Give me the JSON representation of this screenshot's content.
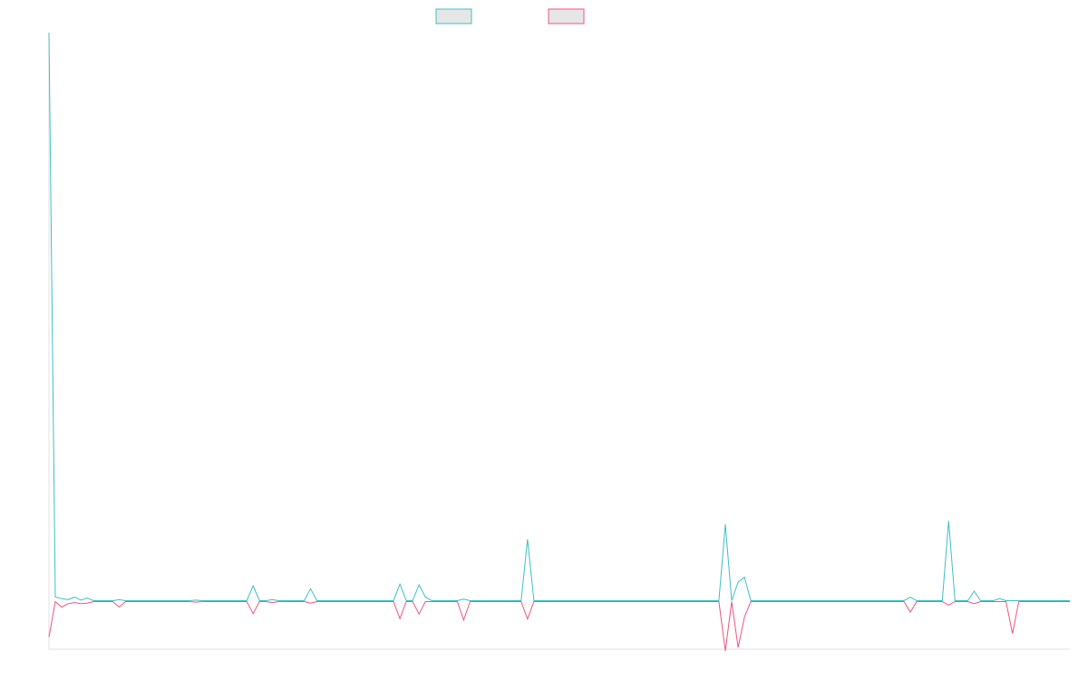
{
  "colors": {
    "series_a": "#3dbfc7",
    "series_b": "#f0557f",
    "axis": "#e0e0e0",
    "legend_fill": "#e6e6e6"
  },
  "legend": [
    {
      "key": "series_a",
      "label": ""
    },
    {
      "key": "series_b",
      "label": ""
    }
  ],
  "chart_data": {
    "type": "line",
    "title": "",
    "xlabel": "",
    "ylabel": "",
    "grid": false,
    "legend_position": "top-center",
    "ylim": [
      -10,
      114
    ],
    "x": [
      0,
      1,
      2,
      3,
      4,
      5,
      6,
      7,
      8,
      9,
      10,
      11,
      12,
      13,
      14,
      15,
      16,
      17,
      18,
      19,
      20,
      21,
      22,
      23,
      24,
      25,
      26,
      27,
      28,
      29,
      30,
      31,
      32,
      33,
      34,
      35,
      36,
      37,
      38,
      39,
      40,
      41,
      42,
      43,
      44,
      45,
      46,
      47,
      48,
      49,
      50,
      51,
      52,
      53,
      54,
      55,
      56,
      57,
      58,
      59,
      60,
      61,
      62,
      63,
      64,
      65,
      66,
      67,
      68,
      69,
      70,
      71,
      72,
      73,
      74,
      75,
      76,
      77,
      78,
      79,
      80,
      81,
      82,
      83,
      84,
      85,
      86,
      87,
      88,
      89,
      90,
      91,
      92,
      93,
      94,
      95,
      96,
      97,
      98,
      99,
      100,
      101,
      102,
      103,
      104,
      105,
      106,
      107,
      108,
      109,
      110,
      111,
      112,
      113,
      114,
      115,
      116,
      117,
      118,
      119,
      120,
      121,
      122,
      123,
      124,
      125,
      126,
      127,
      128,
      129,
      130,
      131,
      132,
      133,
      134,
      135,
      136,
      137,
      138,
      139,
      140,
      141,
      142,
      143,
      144,
      145,
      146,
      147,
      148,
      149,
      150,
      151,
      152,
      153,
      154,
      155,
      156,
      157,
      158,
      159,
      160
    ],
    "series": [
      {
        "key": "series_a",
        "values": [
          114,
          0.8,
          0.5,
          0.3,
          0.8,
          0.2,
          0.6,
          0.1,
          0.1,
          0.1,
          0.1,
          0.3,
          0.1,
          0.1,
          0.1,
          0.1,
          0.1,
          0.1,
          0.1,
          0.1,
          0.1,
          0.1,
          0.1,
          0.2,
          0.1,
          0.1,
          0.1,
          0.1,
          0.1,
          0.1,
          0.1,
          0.1,
          3.1,
          0.1,
          0.1,
          0.3,
          0.1,
          0.1,
          0.1,
          0.1,
          0.1,
          2.5,
          0.1,
          0.1,
          0.1,
          0.1,
          0.1,
          0.1,
          0.1,
          0.1,
          0.1,
          0.1,
          0.1,
          0.1,
          0.1,
          3.4,
          0.1,
          0.1,
          3.3,
          0.8,
          0.1,
          0.1,
          0.1,
          0.1,
          0.1,
          0.4,
          0.1,
          0.1,
          0.1,
          0.1,
          0.1,
          0.1,
          0.1,
          0.1,
          0.1,
          12.4,
          0.1,
          0.1,
          0.1,
          0.1,
          0.1,
          0.1,
          0.1,
          0.1,
          0.1,
          0.1,
          0.1,
          0.1,
          0.1,
          0.1,
          0.1,
          0.1,
          0.1,
          0.1,
          0.1,
          0.1,
          0.1,
          0.1,
          0.1,
          0.1,
          0.1,
          0.1,
          0.1,
          0.1,
          0.1,
          0.1,
          15.4,
          0.1,
          3.8,
          4.8,
          0.1,
          0.1,
          0.1,
          0.1,
          0.1,
          0.1,
          0.1,
          0.1,
          0.1,
          0.1,
          0.1,
          0.1,
          0.1,
          0.1,
          0.1,
          0.1,
          0.1,
          0.1,
          0.1,
          0.1,
          0.1,
          0.1,
          0.1,
          0.1,
          0.1,
          0.8,
          0.1,
          0.1,
          0.1,
          0.1,
          0.1,
          16.1,
          0.1,
          0.1,
          0.1,
          2.0,
          0.1,
          0.1,
          0.1,
          0.5,
          0.1,
          0.1,
          0.1,
          0.1,
          0.1,
          0.1,
          0.1,
          0.1,
          0.1,
          0.1,
          0.1
        ]
      },
      {
        "key": "series_b",
        "values": [
          -7.2,
          -0.1,
          -1.2,
          -0.5,
          -0.3,
          -0.5,
          -0.4,
          -0.1,
          -0.1,
          -0.1,
          -0.1,
          -1.2,
          -0.1,
          -0.1,
          -0.1,
          -0.1,
          -0.1,
          -0.1,
          -0.1,
          -0.1,
          -0.1,
          -0.1,
          -0.1,
          -0.2,
          -0.1,
          -0.1,
          -0.1,
          -0.1,
          -0.1,
          -0.1,
          -0.1,
          -0.1,
          -2.5,
          -0.1,
          -0.1,
          -0.3,
          -0.1,
          -0.1,
          -0.1,
          -0.1,
          -0.1,
          -0.4,
          -0.1,
          -0.1,
          -0.1,
          -0.1,
          -0.1,
          -0.1,
          -0.1,
          -0.1,
          -0.1,
          -0.1,
          -0.1,
          -0.1,
          -0.1,
          -3.5,
          -0.1,
          -0.1,
          -2.6,
          -0.1,
          -0.1,
          -0.1,
          -0.1,
          -0.1,
          -0.1,
          -3.8,
          -0.1,
          -0.1,
          -0.1,
          -0.1,
          -0.1,
          -0.1,
          -0.1,
          -0.1,
          -0.1,
          -3.6,
          -0.1,
          -0.1,
          -0.1,
          -0.1,
          -0.1,
          -0.1,
          -0.1,
          -0.1,
          -0.1,
          -0.1,
          -0.1,
          -0.1,
          -0.1,
          -0.1,
          -0.1,
          -0.1,
          -0.1,
          -0.1,
          -0.1,
          -0.1,
          -0.1,
          -0.1,
          -0.1,
          -0.1,
          -0.1,
          -0.1,
          -0.1,
          -0.1,
          -0.1,
          -0.1,
          -10.0,
          -0.1,
          -9.3,
          -3.2,
          -0.1,
          -0.1,
          -0.1,
          -0.1,
          -0.1,
          -0.1,
          -0.1,
          -0.1,
          -0.1,
          -0.1,
          -0.1,
          -0.1,
          -0.1,
          -0.1,
          -0.1,
          -0.1,
          -0.1,
          -0.1,
          -0.1,
          -0.1,
          -0.1,
          -0.1,
          -0.1,
          -0.1,
          -0.1,
          -2.2,
          -0.1,
          -0.1,
          -0.1,
          -0.1,
          -0.1,
          -0.8,
          -0.1,
          -0.1,
          -0.1,
          -0.5,
          -0.1,
          -0.1,
          -0.1,
          -0.1,
          -0.1,
          -6.5,
          -0.1,
          -0.1,
          -0.1,
          -0.1,
          -0.1,
          -0.1,
          -0.1,
          -0.1,
          -0.1
        ]
      }
    ]
  }
}
